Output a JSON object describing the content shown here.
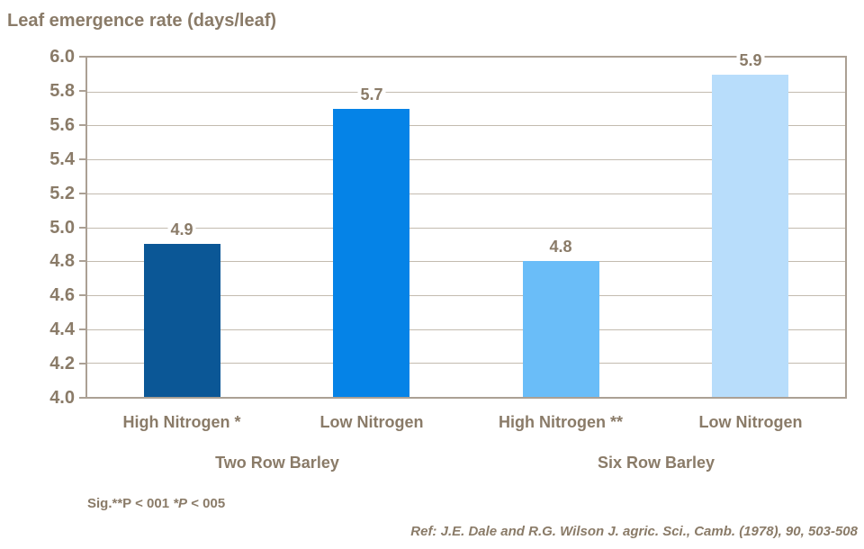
{
  "chart_data": {
    "type": "bar",
    "title": "Leaf emergence rate (days/leaf)",
    "categories": [
      "High Nitrogen *",
      "Low Nitrogen",
      "High Nitrogen **",
      "Low Nitrogen"
    ],
    "values": [
      4.9,
      5.7,
      4.8,
      5.9
    ],
    "value_labels": [
      "4.9",
      "5.7",
      "4.8",
      "5.9"
    ],
    "bar_colors": [
      "#0B5796",
      "#0583E7",
      "#6ABDF8",
      "#B8DDFB"
    ],
    "groups": [
      {
        "label": "Two Row Barley",
        "span": [
          0,
          1
        ]
      },
      {
        "label": "Six Row Barley",
        "span": [
          2,
          3
        ]
      }
    ],
    "ylim": [
      4.0,
      6.0
    ],
    "yticks": [
      6.0,
      5.8,
      5.6,
      5.4,
      5.2,
      5.0,
      4.8,
      4.6,
      4.4,
      4.2,
      4.0
    ],
    "ytick_labels": [
      "6.0",
      "5.8",
      "5.6",
      "5.4",
      "5.2",
      "5.0",
      "4.8",
      "4.6",
      "4.4",
      "4.2",
      "4.0"
    ],
    "grid": true,
    "legend": null,
    "xlabel": "",
    "ylabel": ""
  },
  "footnotes": {
    "sig_prefix": "Sig.**P < 001 ",
    "sig_italic": "*P",
    "sig_suffix": " < 005",
    "reference": "Ref: J.E. Dale and R.G. Wilson J. agric. Sci., Camb. (1978), 90, 503-508"
  },
  "colors": {
    "text": "#8A7B68",
    "axis": "#ABA094",
    "gridline": "#C3BBAF",
    "background": "#FFFFFF"
  }
}
